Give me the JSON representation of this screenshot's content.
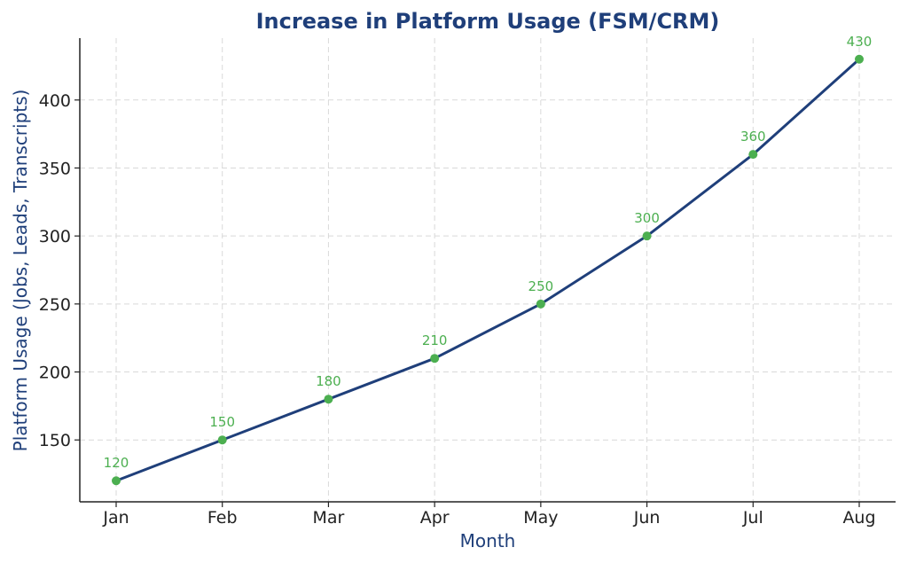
{
  "chart_data": {
    "type": "line",
    "title": "Increase in Platform Usage (FSM/CRM)",
    "xlabel": "Month",
    "ylabel": "Platform Usage (Jobs, Leads, Transcripts)",
    "categories": [
      "Jan",
      "Feb",
      "Mar",
      "Apr",
      "May",
      "Jun",
      "Jul",
      "Aug"
    ],
    "series": [
      {
        "values": [
          120,
          150,
          180,
          210,
          250,
          300,
          360,
          430
        ]
      }
    ],
    "yticks": [
      150,
      200,
      250,
      300,
      350,
      400
    ],
    "ylim": [
      104.5,
      445.5
    ],
    "grid": true,
    "colors": {
      "title": "#1f3f7a",
      "axis_label": "#1f3f7a",
      "line": "#1f3f7a",
      "marker": "#4caf50",
      "data_label": "#4caf50"
    }
  }
}
